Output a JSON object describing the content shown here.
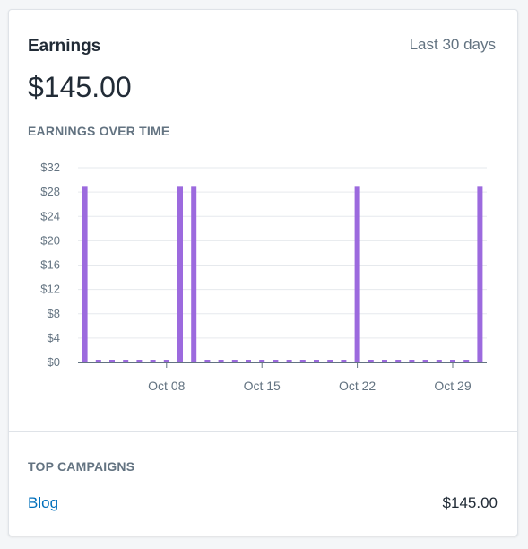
{
  "card": {
    "title": "Earnings",
    "date_range": "Last 30 days",
    "total": "$145.00",
    "section_heading": "EARNINGS OVER TIME"
  },
  "campaigns": {
    "heading": "TOP CAMPAIGNS",
    "items": [
      {
        "name": "Blog",
        "value": "$145.00"
      }
    ]
  },
  "colors": {
    "bar": "#9c6ade",
    "link": "#006fbb"
  },
  "chart_data": {
    "type": "bar",
    "x": [
      "Oct 02",
      "Oct 03",
      "Oct 04",
      "Oct 05",
      "Oct 06",
      "Oct 07",
      "Oct 08",
      "Oct 09",
      "Oct 10",
      "Oct 11",
      "Oct 12",
      "Oct 13",
      "Oct 14",
      "Oct 15",
      "Oct 16",
      "Oct 17",
      "Oct 18",
      "Oct 19",
      "Oct 20",
      "Oct 21",
      "Oct 22",
      "Oct 23",
      "Oct 24",
      "Oct 25",
      "Oct 26",
      "Oct 27",
      "Oct 28",
      "Oct 29",
      "Oct 30",
      "Oct 31"
    ],
    "values": [
      29,
      0,
      0,
      0,
      0,
      0,
      0,
      29,
      29,
      0,
      0,
      0,
      0,
      0,
      0,
      0,
      0,
      0,
      0,
      0,
      29,
      0,
      0,
      0,
      0,
      0,
      0,
      0,
      0,
      29
    ],
    "y_ticks": [
      "$0",
      "$4",
      "$8",
      "$12",
      "$16",
      "$20",
      "$24",
      "$28",
      "$32"
    ],
    "x_tick_labels": [
      "Oct 08",
      "Oct 15",
      "Oct 22",
      "Oct 29"
    ],
    "ylim": [
      0,
      32
    ],
    "grid": true
  }
}
